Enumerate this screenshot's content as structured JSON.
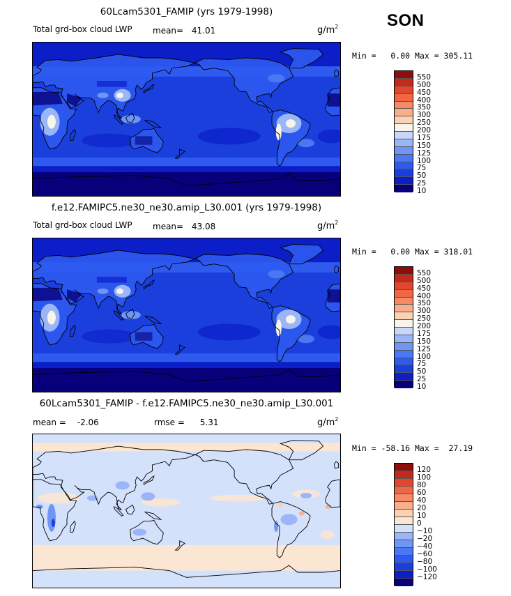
{
  "season": "SON",
  "units": {
    "base": "g/m",
    "exp": "2"
  },
  "colors": {
    "seq": [
      "#08007a",
      "#0c1ec8",
      "#1a3fdc",
      "#2e5af0",
      "#4a77f2",
      "#6f95f5",
      "#9bb6f8",
      "#c8d6fb",
      "#f9f4ea",
      "#fbd1b4",
      "#f9ad8b",
      "#f68a67",
      "#f16746",
      "#e3452e",
      "#c42a1c",
      "#8e0e0b"
    ],
    "diff": [
      "#08007a",
      "#0c1ec8",
      "#1a3fdc",
      "#2e5af0",
      "#4a77f2",
      "#6f95f5",
      "#9bb6f8",
      "#d3e1fb",
      "#fbe6d3",
      "#fbd1b4",
      "#f9ad8b",
      "#f68a67",
      "#f16746",
      "#e3452e",
      "#c42a1c",
      "#8e0e0b"
    ]
  },
  "chart_data": [
    {
      "type": "heatmap",
      "title": "60Lcam5301_FAMIP (yrs 1979-1998)",
      "variable": "Total grd-box cloud LWP",
      "mean_label": "mean=",
      "mean": "41.01",
      "min_text": "Min =   0.00 Max = 305.11",
      "min": 0.0,
      "max": 305.11,
      "levels": [
        "10",
        "25",
        "50",
        "75",
        "100",
        "125",
        "150",
        "175",
        "200",
        "250",
        "300",
        "350",
        "400",
        "450",
        "500",
        "550"
      ]
    },
    {
      "type": "heatmap",
      "title": "f.e12.FAMIPC5.ne30_ne30.amip_L30.001 (yrs 1979-1998)",
      "variable": "Total grd-box cloud LWP",
      "mean_label": "mean=",
      "mean": "43.08",
      "min_text": "Min =   0.00 Max = 318.01",
      "min": 0.0,
      "max": 318.01,
      "levels": [
        "10",
        "25",
        "50",
        "75",
        "100",
        "125",
        "150",
        "175",
        "200",
        "250",
        "300",
        "350",
        "400",
        "450",
        "500",
        "550"
      ]
    },
    {
      "type": "heatmap",
      "title": "60Lcam5301_FAMIP - f.e12.FAMIPC5.ne30_ne30.amip_L30.001",
      "mean_label": "mean =",
      "mean": "-2.06",
      "rmse_label": "rmse =",
      "rmse": "5.31",
      "min_text": "Min = -58.16 Max =  27.19",
      "min": -58.16,
      "max": 27.19,
      "levels": [
        "−120",
        "−100",
        "−80",
        "−60",
        "−40",
        "−20",
        "−10",
        "0",
        "10",
        "20",
        "40",
        "60",
        "80",
        "100",
        "120"
      ]
    }
  ]
}
